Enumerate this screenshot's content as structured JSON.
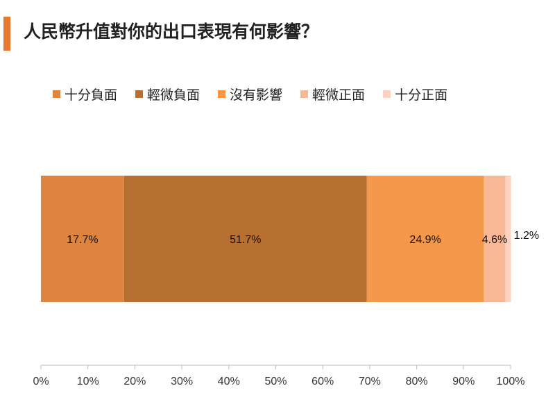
{
  "title": "人民幣升值對你的出口表現有何影響？",
  "colors": {
    "accent": "#e8782d"
  },
  "chart_data": {
    "type": "bar",
    "orientation": "horizontal-stacked-100",
    "categories": [
      ""
    ],
    "series": [
      {
        "name": "十分負面",
        "values": [
          17.7
        ],
        "label": "17.7%",
        "color": "#dd8540"
      },
      {
        "name": "輕微負面",
        "values": [
          51.7
        ],
        "label": "51.7%",
        "color": "#b86f32"
      },
      {
        "name": "沒有影響",
        "values": [
          24.9
        ],
        "label": "24.9%",
        "color": "#f5984a"
      },
      {
        "name": "輕微正面",
        "values": [
          4.6
        ],
        "label": "4.6%",
        "color": "#f8b896"
      },
      {
        "name": "十分正面",
        "values": [
          1.2
        ],
        "label": "1.2%",
        "color": "#fbd3c0"
      }
    ],
    "xlim": [
      0,
      100
    ],
    "xticks": [
      "0%",
      "10%",
      "20%",
      "30%",
      "40%",
      "50%",
      "60%",
      "70%",
      "80%",
      "90%",
      "100%"
    ],
    "grid": false,
    "legend_position": "top"
  }
}
